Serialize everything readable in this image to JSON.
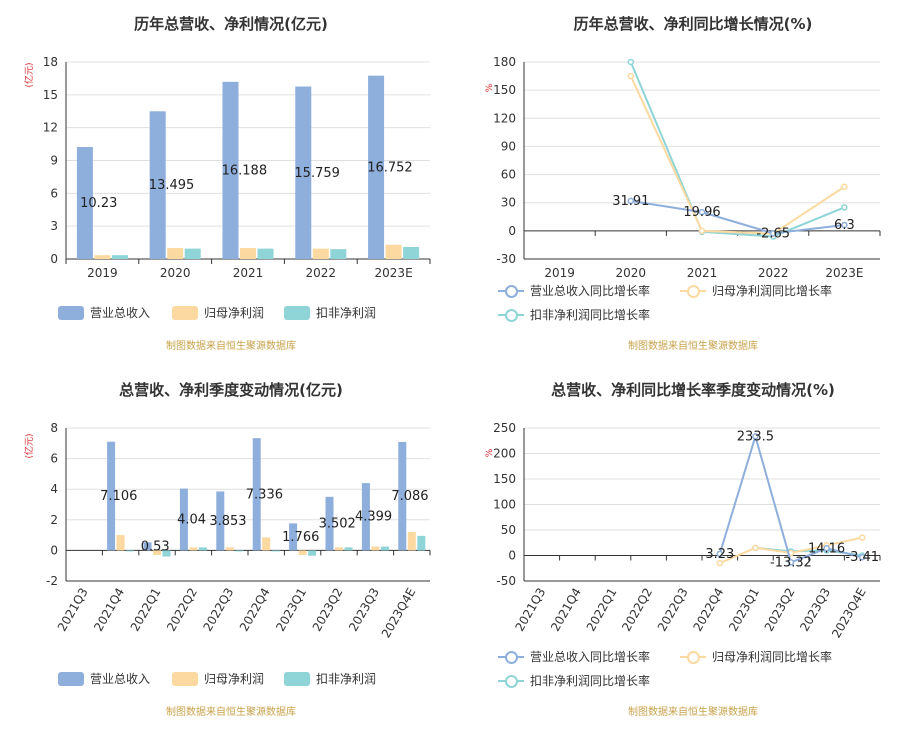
{
  "source_note": "制图数据来自恒生聚源数据库",
  "chart_data": [
    {
      "type": "bar",
      "title": "历年总营收、净利情况(亿元)",
      "ylabel": "(亿元)",
      "ylim": [
        0,
        18
      ],
      "yticks": [
        0,
        3,
        6,
        9,
        12,
        15,
        18
      ],
      "categories": [
        "2019",
        "2020",
        "2021",
        "2022",
        "2023E"
      ],
      "series": [
        {
          "name": "营业总收入",
          "color": "#8eaedc",
          "values": [
            10.23,
            13.495,
            16.188,
            15.759,
            16.752
          ]
        },
        {
          "name": "归母净利润",
          "color": "#fcd9a0",
          "values": [
            0.35,
            1.0,
            1.0,
            0.95,
            1.3
          ]
        },
        {
          "name": "扣非净利润",
          "color": "#8fd4d6",
          "values": [
            0.35,
            0.95,
            0.95,
            0.9,
            1.1
          ]
        }
      ],
      "data_labels": [
        "10.23",
        "13.495",
        "16.188",
        "15.759",
        "16.752"
      ],
      "legend": "bottom",
      "grid": true
    },
    {
      "type": "line",
      "title": "历年总营收、净利同比增长情况(%)",
      "ylabel": "%",
      "ylim": [
        -30,
        180
      ],
      "yticks": [
        -30,
        0,
        30,
        60,
        90,
        120,
        150,
        180
      ],
      "categories": [
        "2019",
        "2020",
        "2021",
        "2022",
        "2023E"
      ],
      "series": [
        {
          "name": "营业总收入同比增长率",
          "color": "#8eaedc",
          "values": [
            null,
            31.91,
            19.96,
            -2.65,
            6.3
          ]
        },
        {
          "name": "归母净利润同比增长率",
          "color": "#fcd9a0",
          "values": [
            null,
            165,
            0,
            -3,
            47
          ]
        },
        {
          "name": "扣非净利润同比增长率",
          "color": "#8fd4d6",
          "values": [
            null,
            180,
            -1,
            -6,
            25
          ]
        }
      ],
      "data_labels": [
        "",
        "31.91",
        "19.96",
        "-2.65",
        "6.3"
      ],
      "legend": "bottom",
      "grid": true
    },
    {
      "type": "bar",
      "title": "总营收、净利季度变动情况(亿元)",
      "ylabel": "(亿元)",
      "ylim": [
        -2,
        8
      ],
      "yticks": [
        -2,
        0,
        2,
        4,
        6,
        8
      ],
      "categories": [
        "2021Q3",
        "2021Q4",
        "2022Q1",
        "2022Q2",
        "2022Q3",
        "2022Q4",
        "2023Q1",
        "2023Q2",
        "2023Q3",
        "2023Q4E"
      ],
      "series": [
        {
          "name": "营业总收入",
          "color": "#8eaedc",
          "values": [
            null,
            7.106,
            0.53,
            4.04,
            3.853,
            7.336,
            1.766,
            3.502,
            4.399,
            7.086
          ]
        },
        {
          "name": "归母净利润",
          "color": "#fcd9a0",
          "values": [
            null,
            1.0,
            -0.3,
            0.2,
            0.2,
            0.85,
            -0.3,
            0.2,
            0.25,
            1.2
          ]
        },
        {
          "name": "扣非净利润",
          "color": "#8fd4d6",
          "values": [
            null,
            0.0,
            -0.4,
            0.2,
            0.0,
            0.0,
            -0.35,
            0.2,
            0.25,
            0.95
          ]
        }
      ],
      "data_labels": [
        "",
        "7.106",
        "0.53",
        "4.04",
        "3.853",
        "7.336",
        "1.766",
        "3.502",
        "4.399",
        "7.086"
      ],
      "legend": "bottom",
      "grid": true
    },
    {
      "type": "line",
      "title": "总营收、净利同比增长率季度变动情况(%)",
      "ylabel": "%",
      "ylim": [
        -50,
        250
      ],
      "yticks": [
        -50,
        0,
        50,
        100,
        150,
        200,
        250
      ],
      "categories": [
        "2021Q3",
        "2021Q4",
        "2022Q1",
        "2022Q2",
        "2022Q3",
        "2022Q4",
        "2023Q1",
        "2023Q2",
        "2023Q3",
        "2023Q4E"
      ],
      "series": [
        {
          "name": "营业总收入同比增长率",
          "color": "#8eaedc",
          "values": [
            null,
            null,
            null,
            null,
            null,
            3.23,
            233.5,
            -13.32,
            14.16,
            -3.41
          ]
        },
        {
          "name": "归母净利润同比增长率",
          "color": "#fcd9a0",
          "values": [
            null,
            null,
            null,
            null,
            null,
            -15,
            15,
            5,
            20,
            35
          ]
        },
        {
          "name": "扣非净利润同比增长率",
          "color": "#8fd4d6",
          "values": [
            null,
            null,
            null,
            null,
            null,
            null,
            15,
            8,
            10,
            0
          ]
        }
      ],
      "data_labels": [
        "",
        "",
        "",
        "",
        "",
        "3.23",
        "233.5",
        "-13.32",
        "14.16",
        "-3.41"
      ],
      "legend": "bottom",
      "grid": true
    }
  ]
}
